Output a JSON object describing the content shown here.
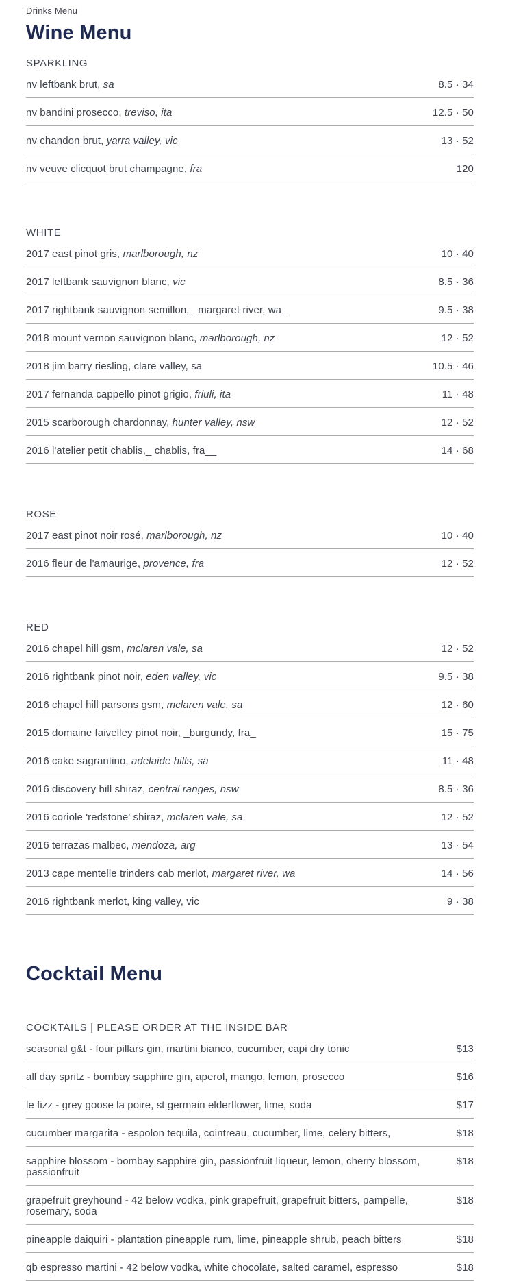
{
  "breadcrumb": "Drinks Menu",
  "colors": {
    "heading": "#1f2a52",
    "text": "#3f444e",
    "muted": "#45474e",
    "divider": "#ababab",
    "background": "#ffffff"
  },
  "menus": [
    {
      "id": "wine-menu",
      "title": "Wine Menu",
      "sections": [
        {
          "header": "SPARKLING",
          "items": [
            {
              "name": "nv leftbank brut, ",
              "region": "sa",
              "price": "8.5 · 34"
            },
            {
              "name": "nv bandini prosecco, ",
              "region": "treviso, ita",
              "price": "12.5 · 50"
            },
            {
              "name": "nv chandon brut, ",
              "region": "yarra valley, vic",
              "price": "13 · 52"
            },
            {
              "name": "nv veuve clicquot brut champagne, ",
              "region": "fra",
              "price": "120"
            }
          ]
        },
        {
          "header": "WHITE",
          "items": [
            {
              "name": "2017 east pinot gris, ",
              "region": "marlborough, nz",
              "price": "10 · 40"
            },
            {
              "name": "2017 leftbank sauvignon blanc, ",
              "region": "vic",
              "price": "8.5 · 36"
            },
            {
              "name": "2017 rightbank sauvignon semillon,_ margaret river, wa_",
              "region": "",
              "price": "9.5 · 38"
            },
            {
              "name": "2018 mount vernon sauvignon blanc, ",
              "region": "marlborough, nz",
              "price": "12 · 52"
            },
            {
              "name": "2018 jim barry riesling, clare valley, sa",
              "region": "",
              "price": "10.5 · 46"
            },
            {
              "name": "2017 fernanda cappello pinot grigio, ",
              "region": "friuli, ita",
              "price": "11 · 48"
            },
            {
              "name": "2015 scarborough chardonnay, ",
              "region": "hunter valley, nsw",
              "price": "12 · 52"
            },
            {
              "name": "2016 l'atelier petit chablis,_ chablis, fra__",
              "region": "",
              "price": "14 · 68"
            }
          ]
        },
        {
          "header": "ROSE",
          "items": [
            {
              "name": "2017 east pinot noir rosé, ",
              "region": "marlborough, nz",
              "price": "10 · 40"
            },
            {
              "name": "2016 fleur de l'amaurige, ",
              "region": "provence, fra",
              "price": "12 · 52"
            }
          ]
        },
        {
          "header": "RED",
          "items": [
            {
              "name": "2016 chapel hill gsm, ",
              "region": "mclaren vale, sa",
              "price": "12 · 52"
            },
            {
              "name": "2016 rightbank pinot noir, ",
              "region": "eden valley, vic",
              "price": "9.5 · 38"
            },
            {
              "name": "2016 chapel hill parsons gsm, ",
              "region": "mclaren vale, sa",
              "price": "12 · 60"
            },
            {
              "name": "2015 domaine faivelley pinot noir, _burgundy, fra_",
              "region": "",
              "price": "15 · 75"
            },
            {
              "name": "2016 cake sagrantino, ",
              "region": "adelaide hills, sa",
              "price": "11 · 48"
            },
            {
              "name": "2016 discovery hill shiraz, ",
              "region": "central ranges, nsw",
              "price": "8.5 · 36"
            },
            {
              "name": "2016 coriole 'redstone' shiraz, ",
              "region": "mclaren vale, sa",
              "price": "12 · 52"
            },
            {
              "name": "2016 terrazas malbec, ",
              "region": "mendoza, arg",
              "price": "13 · 54"
            },
            {
              "name": "2013 cape mentelle trinders cab merlot, ",
              "region": "margaret river, wa",
              "price": "14 · 56"
            },
            {
              "name": "2016 rightbank merlot, king valley, vic",
              "region": "",
              "price": "9 · 38"
            }
          ]
        }
      ]
    },
    {
      "id": "cocktail-menu",
      "title": "Cocktail Menu",
      "sections": [
        {
          "header": "COCKTAILS | PLEASE ORDER AT THE INSIDE BAR",
          "items": [
            {
              "name": "seasonal g&t - four pillars gin, martini bianco, cucumber, capi dry tonic",
              "region": "",
              "price": "$13"
            },
            {
              "name": "all day spritz - bombay sapphire gin, aperol, mango, lemon, prosecco",
              "region": "",
              "price": "$16"
            },
            {
              "name": "le fizz - grey goose la poire, st germain elderflower, lime, soda",
              "region": "",
              "price": "$17"
            },
            {
              "name": "cucumber margarita - espolon tequila, cointreau, cucumber, lime, celery bitters,",
              "region": "",
              "price": "$18"
            },
            {
              "name": "sapphire blossom - bombay sapphire gin, passionfruit liqueur, lemon, cherry blossom, passionfruit",
              "region": "",
              "price": "$18"
            },
            {
              "name": "grapefruit greyhound - 42 below vodka, pink grapefruit, grapefruit bitters, pampelle, rosemary, soda",
              "region": "",
              "price": "$18"
            },
            {
              "name": "pineapple daiquiri - plantation pineapple rum, lime, pineapple shrub, peach bitters",
              "region": "",
              "price": "$18"
            },
            {
              "name": "qb espresso martini - 42 below vodka, white chocolate, salted caramel, espresso",
              "region": "",
              "price": "$18"
            }
          ]
        }
      ]
    }
  ]
}
